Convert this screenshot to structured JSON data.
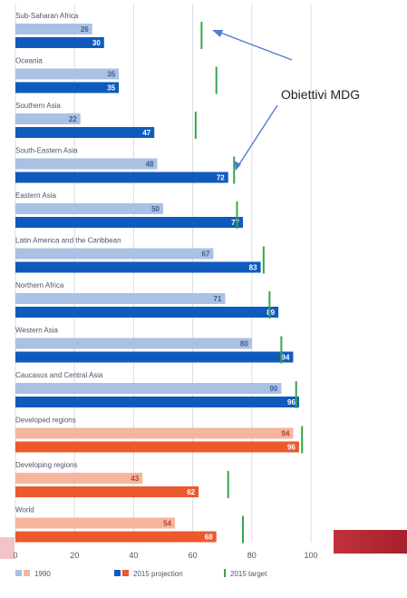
{
  "chart_data": {
    "type": "bar",
    "orientation": "horizontal",
    "categories": [
      "Sub-Saharan Africa",
      "Oceania",
      "Southern Asia",
      "South-Eastern Asia",
      "Eastern Asia",
      "Latin America and the Caribbean",
      "Northern Africa",
      "Western Asia",
      "Caucasus and Central Asia",
      "Developed regions",
      "Developing regions",
      "World"
    ],
    "series": [
      {
        "name": "1990",
        "values": [
          26,
          35,
          22,
          48,
          50,
          67,
          71,
          80,
          90,
          94,
          43,
          54
        ]
      },
      {
        "name": "2015 projection",
        "values": [
          30,
          35,
          47,
          72,
          77,
          83,
          89,
          94,
          96,
          96,
          62,
          68
        ]
      },
      {
        "name": "2015 target",
        "values": [
          63,
          68,
          61,
          74,
          75,
          84,
          86,
          90,
          95,
          97,
          72,
          77
        ]
      }
    ],
    "xlim": [
      0,
      100
    ],
    "xticks": [
      "0",
      "20",
      "40",
      "60",
      "80",
      "100"
    ],
    "grid": true,
    "legend_position": "bottom",
    "colors": {
      "regional_1990": "#a9c1e3",
      "regional_2015": "#0f5bbd",
      "aggregate_1990": "#f6b59c",
      "aggregate_2015": "#ea5a2d",
      "target": "#35a548"
    },
    "annotation": "Obiettivi MDG"
  }
}
